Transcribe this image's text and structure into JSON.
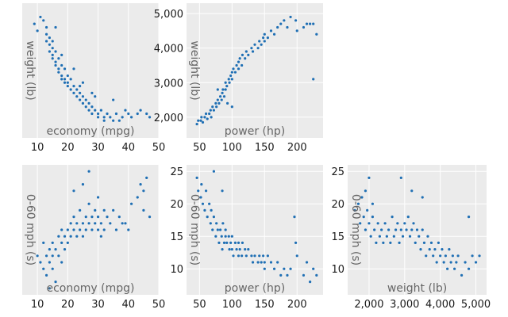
{
  "chart_data": [
    {
      "type": "scatter",
      "xlabel": "economy (mpg)",
      "ylabel": "weight (lb)",
      "xlim": [
        5,
        50
      ],
      "ylim": [
        1400,
        5300
      ],
      "xticks": [
        10,
        20,
        30,
        40,
        50
      ],
      "xtick_labels": [
        "10",
        "20",
        "30",
        "40",
        "50"
      ],
      "yticks": [],
      "ytick_labels": [],
      "color": "#1f6fb4",
      "points": [
        [
          9,
          4700
        ],
        [
          10,
          4500
        ],
        [
          11,
          4900
        ],
        [
          12,
          4800
        ],
        [
          13,
          4600
        ],
        [
          13,
          4400
        ],
        [
          13,
          4200
        ],
        [
          14,
          4300
        ],
        [
          14,
          4100
        ],
        [
          14,
          3900
        ],
        [
          15,
          4000
        ],
        [
          15,
          3800
        ],
        [
          15,
          3700
        ],
        [
          15,
          4200
        ],
        [
          16,
          3900
        ],
        [
          16,
          3600
        ],
        [
          16,
          3500
        ],
        [
          17,
          3700
        ],
        [
          17,
          3400
        ],
        [
          17,
          3300
        ],
        [
          18,
          3500
        ],
        [
          18,
          3200
        ],
        [
          18,
          3100
        ],
        [
          19,
          3400
        ],
        [
          19,
          3000
        ],
        [
          19,
          3100
        ],
        [
          20,
          3200
        ],
        [
          20,
          2900
        ],
        [
          20,
          3000
        ],
        [
          21,
          3100
        ],
        [
          21,
          2800
        ],
        [
          22,
          2900
        ],
        [
          22,
          2700
        ],
        [
          23,
          2800
        ],
        [
          23,
          2600
        ],
        [
          24,
          2500
        ],
        [
          24,
          2700
        ],
        [
          25,
          2600
        ],
        [
          25,
          2400
        ],
        [
          26,
          2500
        ],
        [
          26,
          2300
        ],
        [
          27,
          2400
        ],
        [
          27,
          2200
        ],
        [
          28,
          2300
        ],
        [
          28,
          2100
        ],
        [
          29,
          2200
        ],
        [
          30,
          2100
        ],
        [
          30,
          2000
        ],
        [
          31,
          2200
        ],
        [
          32,
          2000
        ],
        [
          32,
          1900
        ],
        [
          33,
          2100
        ],
        [
          34,
          2000
        ],
        [
          35,
          1900
        ],
        [
          36,
          2100
        ],
        [
          37,
          1900
        ],
        [
          38,
          2000
        ],
        [
          39,
          2200
        ],
        [
          40,
          2100
        ],
        [
          41,
          2000
        ],
        [
          43,
          2100
        ],
        [
          44,
          2200
        ],
        [
          46,
          2100
        ],
        [
          47,
          2000
        ],
        [
          16,
          4600
        ],
        [
          18,
          3800
        ],
        [
          22,
          3400
        ],
        [
          25,
          3000
        ],
        [
          28,
          2700
        ],
        [
          35,
          2500
        ],
        [
          29,
          2600
        ],
        [
          24,
          2900
        ]
      ]
    },
    {
      "type": "scatter",
      "xlabel": "power (hp)",
      "ylabel": "weight (lb)",
      "xlim": [
        30,
        240
      ],
      "ylim": [
        1400,
        5300
      ],
      "xticks": [
        50,
        100,
        150,
        200
      ],
      "xtick_labels": [
        "50",
        "100",
        "150",
        "200"
      ],
      "yticks": [
        2000,
        3000,
        4000,
        5000
      ],
      "ytick_labels": [
        "2,000",
        "3,000",
        "4,000",
        "5,000"
      ],
      "color": "#1f6fb4",
      "points": [
        [
          46,
          1800
        ],
        [
          48,
          1900
        ],
        [
          52,
          1900
        ],
        [
          53,
          2000
        ],
        [
          55,
          1850
        ],
        [
          58,
          2000
        ],
        [
          60,
          2100
        ],
        [
          62,
          1950
        ],
        [
          65,
          2100
        ],
        [
          67,
          2200
        ],
        [
          68,
          2000
        ],
        [
          70,
          2300
        ],
        [
          72,
          2200
        ],
        [
          75,
          2400
        ],
        [
          76,
          2300
        ],
        [
          78,
          2500
        ],
        [
          80,
          2400
        ],
        [
          82,
          2600
        ],
        [
          84,
          2500
        ],
        [
          85,
          2700
        ],
        [
          86,
          2800
        ],
        [
          88,
          2600
        ],
        [
          90,
          2800
        ],
        [
          90,
          3000
        ],
        [
          92,
          2900
        ],
        [
          95,
          3100
        ],
        [
          96,
          3000
        ],
        [
          98,
          3200
        ],
        [
          100,
          3300
        ],
        [
          100,
          3100
        ],
        [
          102,
          3400
        ],
        [
          105,
          3300
        ],
        [
          107,
          3500
        ],
        [
          110,
          3400
        ],
        [
          110,
          3600
        ],
        [
          112,
          3700
        ],
        [
          115,
          3500
        ],
        [
          116,
          3800
        ],
        [
          120,
          3700
        ],
        [
          122,
          3900
        ],
        [
          125,
          3800
        ],
        [
          130,
          4000
        ],
        [
          132,
          3900
        ],
        [
          135,
          4100
        ],
        [
          140,
          4000
        ],
        [
          142,
          4200
        ],
        [
          145,
          4100
        ],
        [
          148,
          4300
        ],
        [
          150,
          4400
        ],
        [
          150,
          4200
        ],
        [
          155,
          4300
        ],
        [
          160,
          4500
        ],
        [
          165,
          4400
        ],
        [
          170,
          4600
        ],
        [
          175,
          4700
        ],
        [
          180,
          4800
        ],
        [
          185,
          4600
        ],
        [
          190,
          4900
        ],
        [
          198,
          4800
        ],
        [
          200,
          4500
        ],
        [
          210,
          4600
        ],
        [
          215,
          4700
        ],
        [
          220,
          4700
        ],
        [
          225,
          4700
        ],
        [
          230,
          4400
        ],
        [
          225,
          3100
        ],
        [
          93,
          2400
        ],
        [
          78,
          2800
        ],
        [
          100,
          2300
        ]
      ]
    },
    {
      "type": "scatter",
      "xlabel": "economy (mpg)",
      "ylabel": "0-60 mph (s)",
      "xlim": [
        5,
        50
      ],
      "ylim": [
        6,
        26
      ],
      "xticks": [
        10,
        20,
        30,
        40,
        50
      ],
      "xtick_labels": [
        "10",
        "20",
        "30",
        "40",
        "50"
      ],
      "yticks": [],
      "ytick_labels": [],
      "color": "#1f6fb4",
      "points": [
        [
          10,
          12
        ],
        [
          11,
          11
        ],
        [
          12,
          10
        ],
        [
          12,
          14
        ],
        [
          13,
          9
        ],
        [
          13,
          12
        ],
        [
          14,
          11
        ],
        [
          14,
          13
        ],
        [
          15,
          10
        ],
        [
          15,
          12
        ],
        [
          15,
          14
        ],
        [
          16,
          13
        ],
        [
          16,
          8
        ],
        [
          17,
          15
        ],
        [
          17,
          12
        ],
        [
          18,
          14
        ],
        [
          18,
          16
        ],
        [
          19,
          13
        ],
        [
          19,
          15
        ],
        [
          20,
          16
        ],
        [
          20,
          14
        ],
        [
          21,
          17
        ],
        [
          21,
          15
        ],
        [
          22,
          16
        ],
        [
          22,
          18
        ],
        [
          23,
          15
        ],
        [
          23,
          17
        ],
        [
          24,
          16
        ],
        [
          24,
          19
        ],
        [
          25,
          17
        ],
        [
          25,
          15
        ],
        [
          26,
          16
        ],
        [
          26,
          18
        ],
        [
          27,
          17
        ],
        [
          27,
          20
        ],
        [
          28,
          16
        ],
        [
          28,
          18
        ],
        [
          29,
          17
        ],
        [
          29,
          19
        ],
        [
          30,
          16
        ],
        [
          30,
          18
        ],
        [
          31,
          17
        ],
        [
          31,
          15
        ],
        [
          32,
          19
        ],
        [
          32,
          16
        ],
        [
          33,
          18
        ],
        [
          34,
          17
        ],
        [
          35,
          19
        ],
        [
          36,
          16
        ],
        [
          37,
          18
        ],
        [
          38,
          17
        ],
        [
          40,
          16
        ],
        [
          41,
          20
        ],
        [
          43,
          21
        ],
        [
          44,
          23
        ],
        [
          45,
          22
        ],
        [
          46,
          24
        ],
        [
          45,
          19
        ],
        [
          47,
          18
        ],
        [
          27,
          25
        ],
        [
          22,
          22
        ],
        [
          25,
          23
        ],
        [
          18,
          11
        ],
        [
          14,
          7
        ],
        [
          30,
          21
        ],
        [
          39,
          17
        ]
      ]
    },
    {
      "type": "scatter",
      "xlabel": "power (hp)",
      "ylabel": "0-60 mph (s)",
      "xlim": [
        30,
        240
      ],
      "ylim": [
        6,
        26
      ],
      "xticks": [
        50,
        100,
        150,
        200
      ],
      "xtick_labels": [
        "50",
        "100",
        "150",
        "200"
      ],
      "yticks": [
        10,
        15,
        20,
        25
      ],
      "ytick_labels": [
        "10",
        "15",
        "20",
        "25"
      ],
      "color": "#1f6fb4",
      "points": [
        [
          46,
          24
        ],
        [
          48,
          22
        ],
        [
          52,
          21
        ],
        [
          53,
          23
        ],
        [
          55,
          20
        ],
        [
          58,
          19
        ],
        [
          60,
          22
        ],
        [
          62,
          18
        ],
        [
          65,
          20
        ],
        [
          67,
          17
        ],
        [
          68,
          19
        ],
        [
          70,
          16
        ],
        [
          72,
          18
        ],
        [
          75,
          15
        ],
        [
          76,
          17
        ],
        [
          78,
          16
        ],
        [
          80,
          14
        ],
        [
          82,
          16
        ],
        [
          84,
          15
        ],
        [
          85,
          13
        ],
        [
          86,
          17
        ],
        [
          88,
          14
        ],
        [
          90,
          15
        ],
        [
          90,
          16
        ],
        [
          92,
          14
        ],
        [
          95,
          15
        ],
        [
          96,
          13
        ],
        [
          98,
          14
        ],
        [
          100,
          13
        ],
        [
          100,
          15
        ],
        [
          102,
          12
        ],
        [
          105,
          14
        ],
        [
          107,
          13
        ],
        [
          110,
          12
        ],
        [
          110,
          14
        ],
        [
          112,
          13
        ],
        [
          115,
          12
        ],
        [
          116,
          14
        ],
        [
          120,
          13
        ],
        [
          122,
          12
        ],
        [
          125,
          13
        ],
        [
          130,
          12
        ],
        [
          132,
          11
        ],
        [
          135,
          12
        ],
        [
          140,
          11
        ],
        [
          142,
          12
        ],
        [
          145,
          11
        ],
        [
          148,
          12
        ],
        [
          150,
          10
        ],
        [
          150,
          11
        ],
        [
          155,
          12
        ],
        [
          160,
          11
        ],
        [
          165,
          10
        ],
        [
          170,
          11
        ],
        [
          175,
          9
        ],
        [
          180,
          10
        ],
        [
          185,
          9
        ],
        [
          190,
          10
        ],
        [
          198,
          14
        ],
        [
          200,
          12
        ],
        [
          210,
          9
        ],
        [
          215,
          11
        ],
        [
          220,
          8
        ],
        [
          225,
          10
        ],
        [
          230,
          9
        ],
        [
          196,
          18
        ],
        [
          72,
          25
        ],
        [
          85,
          22
        ]
      ]
    },
    {
      "type": "scatter",
      "xlabel": "weight (lb)",
      "ylabel": "0-60 mph (s)",
      "xlim": [
        1400,
        5300
      ],
      "ylim": [
        6,
        26
      ],
      "xticks": [
        2000,
        3000,
        4000,
        5000
      ],
      "xtick_labels": [
        "2,000",
        "3,000",
        "4,000",
        "5,000"
      ],
      "yticks": [
        10,
        15,
        20,
        25
      ],
      "ytick_labels": [
        "10",
        "15",
        "20",
        "25"
      ],
      "color": "#1f6fb4",
      "points": [
        [
          1600,
          19
        ],
        [
          1700,
          20
        ],
        [
          1750,
          17
        ],
        [
          1800,
          21
        ],
        [
          1850,
          18
        ],
        [
          1900,
          16
        ],
        [
          1950,
          19
        ],
        [
          2000,
          17
        ],
        [
          2050,
          15
        ],
        [
          2100,
          18
        ],
        [
          2150,
          16
        ],
        [
          2200,
          14
        ],
        [
          2250,
          17
        ],
        [
          2300,
          15
        ],
        [
          2350,
          16
        ],
        [
          2400,
          14
        ],
        [
          2450,
          17
        ],
        [
          2500,
          15
        ],
        [
          2550,
          16
        ],
        [
          2600,
          14
        ],
        [
          2650,
          18
        ],
        [
          2700,
          15
        ],
        [
          2750,
          16
        ],
        [
          2800,
          17
        ],
        [
          2850,
          14
        ],
        [
          2900,
          16
        ],
        [
          2950,
          15
        ],
        [
          3000,
          17
        ],
        [
          3050,
          16
        ],
        [
          3100,
          18
        ],
        [
          3150,
          15
        ],
        [
          3200,
          16
        ],
        [
          3250,
          17
        ],
        [
          3300,
          14
        ],
        [
          3350,
          16
        ],
        [
          3400,
          15
        ],
        [
          3450,
          13
        ],
        [
          3500,
          16
        ],
        [
          3550,
          14
        ],
        [
          3600,
          12
        ],
        [
          3650,
          15
        ],
        [
          3700,
          13
        ],
        [
          3750,
          14
        ],
        [
          3800,
          12
        ],
        [
          3850,
          13
        ],
        [
          3900,
          11
        ],
        [
          3950,
          14
        ],
        [
          4000,
          12
        ],
        [
          4050,
          13
        ],
        [
          4100,
          11
        ],
        [
          4150,
          12
        ],
        [
          4200,
          10
        ],
        [
          4250,
          13
        ],
        [
          4300,
          11
        ],
        [
          4350,
          12
        ],
        [
          4400,
          10
        ],
        [
          4450,
          11
        ],
        [
          4500,
          12
        ],
        [
          4600,
          9
        ],
        [
          4700,
          11
        ],
        [
          4800,
          10
        ],
        [
          4900,
          12
        ],
        [
          5000,
          11
        ],
        [
          5100,
          12
        ],
        [
          2000,
          24
        ],
        [
          2900,
          24
        ],
        [
          3200,
          22
        ],
        [
          3500,
          21
        ],
        [
          1900,
          22
        ],
        [
          4800,
          18
        ],
        [
          2100,
          20
        ]
      ]
    }
  ]
}
